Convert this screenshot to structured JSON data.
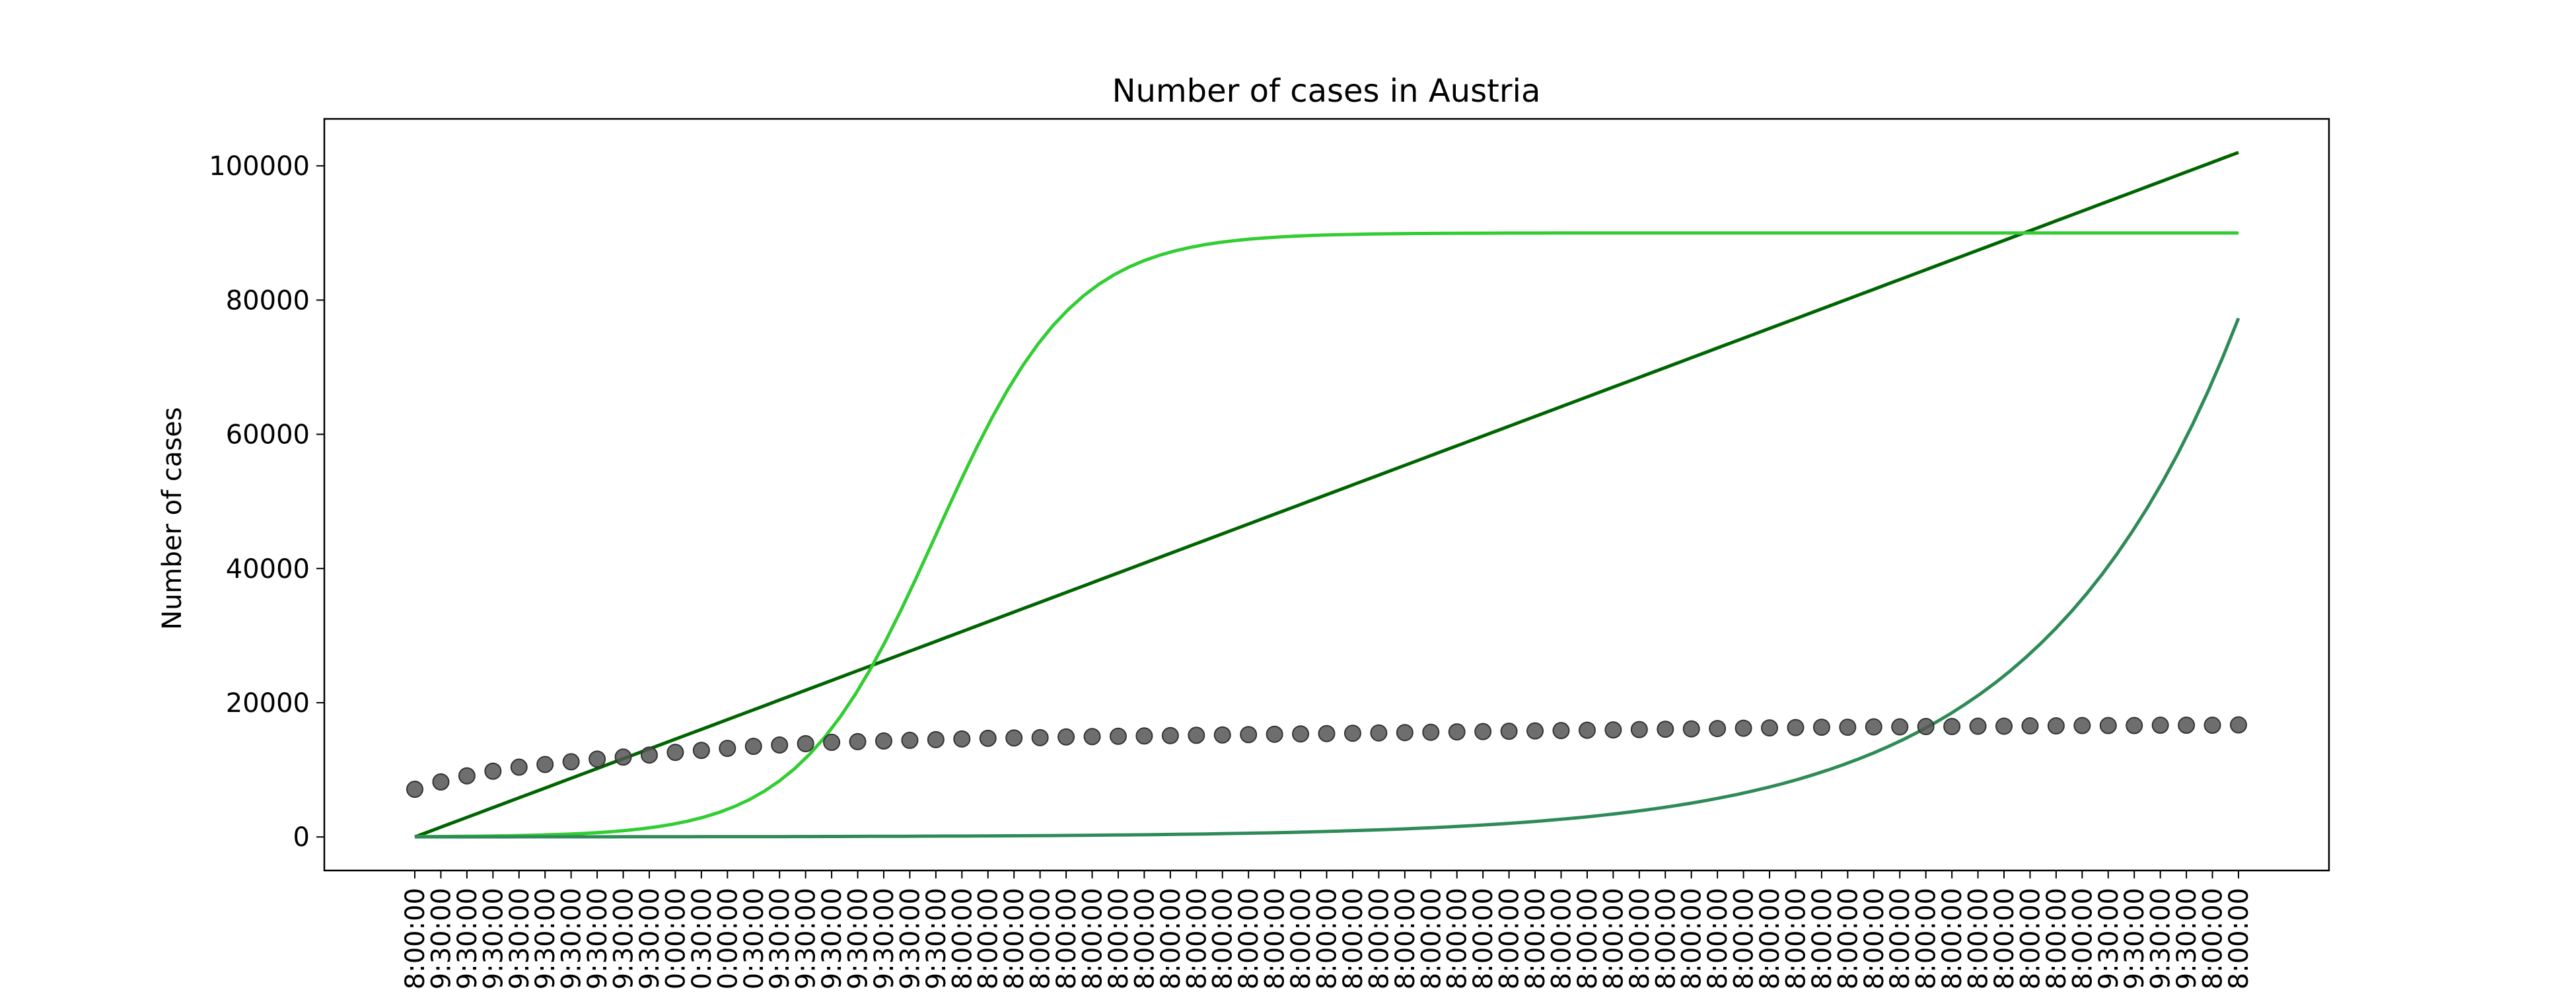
{
  "chart_data": {
    "type": "line",
    "title": "Number of cases in Austria",
    "xlabel": "",
    "ylabel": "Number of cases",
    "ylim": [
      -5000,
      107000
    ],
    "y_ticks": [
      0,
      20000,
      40000,
      60000,
      80000,
      100000
    ],
    "y_tick_labels": [
      "0",
      "20000",
      "40000",
      "60000",
      "80000",
      "100000"
    ],
    "grid": false,
    "legend": "none",
    "x_tick_labels": [
      "8:00:00",
      "9:30:00",
      "9:30:00",
      "9:30:00",
      "9:30:00",
      "9:30:00",
      "9:30:00",
      "9:30:00",
      "9:30:00",
      "9:30:00",
      "0:00:00",
      "0:30:00",
      "0:00:00",
      "0:30:00",
      "9:30:00",
      "9:30:00",
      "9:30:00",
      "9:30:00",
      "9:30:00",
      "9:30:00",
      "9:30:00",
      "8:00:00",
      "8:00:00",
      "8:00:00",
      "8:00:00",
      "8:00:00",
      "8:00:00",
      "8:00:00",
      "8:00:00",
      "8:00:00",
      "8:00:00",
      "8:00:00",
      "8:00:00",
      "8:00:00",
      "8:00:00",
      "8:00:00",
      "8:00:00",
      "8:00:00",
      "8:00:00",
      "8:00:00",
      "8:00:00",
      "8:00:00",
      "8:00:00",
      "8:00:00",
      "8:00:00",
      "8:00:00",
      "8:00:00",
      "8:00:00",
      "8:00:00",
      "8:00:00",
      "8:00:00",
      "8:00:00",
      "8:00:00",
      "8:00:00",
      "8:00:00",
      "8:00:00",
      "8:00:00",
      "8:00:00",
      "8:00:00",
      "8:00:00",
      "8:00:00",
      "8:00:00",
      "8:00:00",
      "8:00:00",
      "8:00:00",
      "9:30:00",
      "9:30:00",
      "9:30:00",
      "9:30:00",
      "8:00:00",
      "8:00:00"
    ],
    "series": [
      {
        "kind": "scatter",
        "color": "#555555",
        "values": [
          7100,
          8200,
          9100,
          9800,
          10400,
          10800,
          11200,
          11600,
          11900,
          12200,
          12600,
          12900,
          13200,
          13500,
          13700,
          13900,
          14100,
          14200,
          14300,
          14400,
          14500,
          14600,
          14700,
          14750,
          14800,
          14900,
          14950,
          15000,
          15050,
          15100,
          15150,
          15200,
          15250,
          15300,
          15350,
          15400,
          15450,
          15500,
          15550,
          15600,
          15650,
          15700,
          15750,
          15800,
          15850,
          15900,
          15950,
          16000,
          16050,
          16100,
          16150,
          16200,
          16250,
          16300,
          16350,
          16350,
          16400,
          16400,
          16450,
          16450,
          16500,
          16500,
          16550,
          16550,
          16600,
          16600,
          16600,
          16650,
          16650,
          16650,
          16700
        ]
      },
      {
        "kind": "line",
        "model": "linear",
        "color": "#006400",
        "start": 0,
        "end": 102000
      },
      {
        "kind": "line",
        "model": "logistic",
        "color": "#32cd32",
        "capacity": 90000,
        "midpoint": 20,
        "rate": 0.38
      },
      {
        "kind": "line",
        "model": "exponential",
        "color": "#2e8b57",
        "end": 77300,
        "growth": 0.13
      }
    ]
  }
}
